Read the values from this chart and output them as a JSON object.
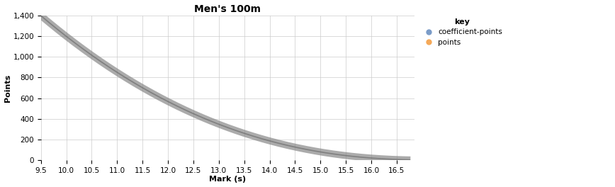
{
  "title": "Men's 100m",
  "xlabel": "Mark (s)",
  "ylabel": "Points",
  "xlim": [
    9.5,
    16.85
  ],
  "ylim": [
    0,
    1400
  ],
  "xticks": [
    9.5,
    10.0,
    10.5,
    11.0,
    11.5,
    12.0,
    12.5,
    13.0,
    13.5,
    14.0,
    14.5,
    15.0,
    15.5,
    16.0,
    16.5
  ],
  "ytick_vals": [
    0,
    200,
    400,
    600,
    800,
    1000,
    1200,
    1400
  ],
  "ytick_labels": [
    "0",
    "200",
    "400",
    "600",
    "800",
    "1,000",
    "1,200",
    "1,400"
  ],
  "curve_color": "#888888",
  "curve_alpha": 0.7,
  "dot_color_blue": "#7B9CC8",
  "dot_color_orange": "#F5A959",
  "legend_title": "key",
  "legend_labels": [
    "coefficient-points",
    "points"
  ],
  "background_color": "#ffffff",
  "grid_color": "#cccccc",
  "title_fontsize": 10,
  "axis_label_fontsize": 8,
  "tick_fontsize": 7.5,
  "b_param": 18.8,
  "A_param": 5.1,
  "n_param": 1.95,
  "T_start": 9.5,
  "T_end": 16.77,
  "n_points": 1000,
  "linewidth": 7
}
